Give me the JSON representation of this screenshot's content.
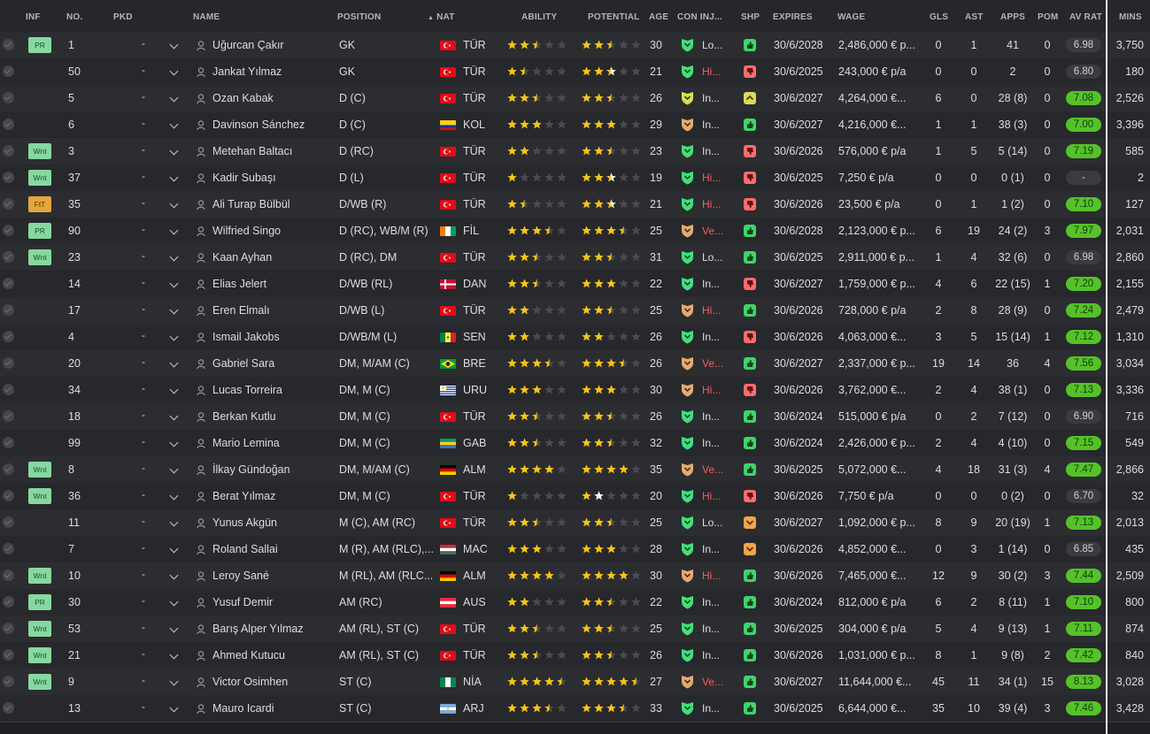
{
  "columns": {
    "inf": "INF",
    "no": "NO.",
    "pkd": "PKD",
    "name": "NAME",
    "position": "POSITION",
    "nat": "NAT",
    "ability": "ABILITY",
    "potential": "POTENTIAL",
    "age": "AGE",
    "con_inj": "CON INJ...",
    "shp": "SHP",
    "expires": "EXPIRES",
    "wage": "WAGE",
    "gls": "GLS",
    "ast": "AST",
    "apps": "APPS",
    "pom": "POM",
    "av_rat": "AV RAT",
    "mins": "MINS"
  },
  "colors": {
    "accent_green": "#55c22a",
    "injury_red": "#ff5a5a",
    "star": "#f5c518",
    "tag_green": "#86d8a0",
    "tag_orange": "#e3a73a"
  },
  "players": [
    {
      "inf": "PR",
      "no": "1",
      "pkd": "-",
      "name": "Uğurcan Çakır",
      "position": "GK",
      "nat": "TÜR",
      "flag": "tr",
      "ability": 2.5,
      "potential": 2.5,
      "age": "30",
      "con": "green",
      "inj": "Lo...",
      "inj_red": false,
      "shp": "g",
      "expires": "30/6/2028",
      "wage": "2,486,000 € p...",
      "gls": "0",
      "ast": "1",
      "apps": "41",
      "pom": "0",
      "av_rat": "6.98",
      "av_hi": false,
      "mins": "3,750"
    },
    {
      "inf": "",
      "no": "50",
      "pkd": "-",
      "name": "Jankat Yılmaz",
      "position": "GK",
      "nat": "TÜR",
      "flag": "tr",
      "ability": 1.5,
      "potential": 2.5,
      "potential_white": 1,
      "age": "21",
      "con": "green",
      "inj": "Hi...",
      "inj_red": true,
      "shp": "r",
      "expires": "30/6/2025",
      "wage": "243,000 € p/a",
      "gls": "0",
      "ast": "0",
      "apps": "2",
      "pom": "0",
      "av_rat": "6.80",
      "av_hi": false,
      "mins": "180"
    },
    {
      "inf": "",
      "no": "5",
      "pkd": "-",
      "name": "Ozan Kabak",
      "position": "D (C)",
      "nat": "TÜR",
      "flag": "tr",
      "ability": 2.5,
      "potential": 2.5,
      "age": "26",
      "con": "yellow",
      "inj": "In...",
      "inj_red": false,
      "shp": "y",
      "expires": "30/6/2027",
      "wage": "4,264,000 €...",
      "gls": "6",
      "ast": "0",
      "apps": "28 (8)",
      "pom": "0",
      "av_rat": "7.08",
      "av_hi": true,
      "mins": "2,526"
    },
    {
      "inf": "",
      "no": "6",
      "pkd": "-",
      "name": "Davinson Sánchez",
      "position": "D (C)",
      "nat": "KOL",
      "flag": "co",
      "ability": 3,
      "potential": 3,
      "age": "29",
      "con": "orange",
      "inj": "In...",
      "inj_red": false,
      "shp": "g",
      "expires": "30/6/2027",
      "wage": "4,216,000 €...",
      "gls": "1",
      "ast": "1",
      "apps": "38 (3)",
      "pom": "0",
      "av_rat": "7.00",
      "av_hi": true,
      "mins": "3,396"
    },
    {
      "inf": "Wnt",
      "no": "3",
      "pkd": "-",
      "name": "Metehan Baltacı",
      "position": "D (RC)",
      "nat": "TÜR",
      "flag": "tr",
      "ability": 2,
      "potential": 2.5,
      "age": "23",
      "con": "green",
      "inj": "In...",
      "inj_red": false,
      "shp": "r",
      "expires": "30/6/2026",
      "wage": "576,000 € p/a",
      "gls": "1",
      "ast": "5",
      "apps": "5 (14)",
      "pom": "0",
      "av_rat": "7.19",
      "av_hi": true,
      "mins": "585"
    },
    {
      "inf": "Wnt",
      "no": "37",
      "pkd": "-",
      "name": "Kadir Subaşı",
      "position": "D (L)",
      "nat": "TÜR",
      "flag": "tr",
      "ability": 1,
      "potential": 2.5,
      "potential_white": 1,
      "age": "19",
      "con": "green",
      "inj": "Hi...",
      "inj_red": true,
      "shp": "r",
      "expires": "30/6/2025",
      "wage": "7,250 € p/a",
      "gls": "0",
      "ast": "0",
      "apps": "0 (1)",
      "pom": "0",
      "av_rat": "-",
      "av_hi": false,
      "mins": "2"
    },
    {
      "inf": "FtT",
      "no": "35",
      "pkd": "-",
      "name": "Ali Turap Bülbül",
      "position": "D/WB (R)",
      "nat": "TÜR",
      "flag": "tr",
      "ability": 1.5,
      "potential": 2.5,
      "potential_white": 1,
      "age": "21",
      "con": "green",
      "inj": "Hi...",
      "inj_red": true,
      "shp": "r",
      "expires": "30/6/2026",
      "wage": "23,500 € p/a",
      "gls": "0",
      "ast": "1",
      "apps": "1 (2)",
      "pom": "0",
      "av_rat": "7.10",
      "av_hi": true,
      "mins": "127"
    },
    {
      "inf": "PR",
      "no": "90",
      "pkd": "-",
      "name": "Wilfried Singo",
      "position": "D (RC), WB/M (R)",
      "nat": "FİL",
      "flag": "ci",
      "ability": 3.5,
      "potential": 3.5,
      "age": "25",
      "con": "orange",
      "inj": "Ve...",
      "inj_red": true,
      "shp": "g",
      "expires": "30/6/2028",
      "wage": "2,123,000 € p...",
      "gls": "6",
      "ast": "19",
      "apps": "24 (2)",
      "pom": "3",
      "av_rat": "7.97",
      "av_hi": true,
      "mins": "2,031"
    },
    {
      "inf": "Wnt",
      "no": "23",
      "pkd": "-",
      "name": "Kaan Ayhan",
      "position": "D (RC), DM",
      "nat": "TÜR",
      "flag": "tr",
      "ability": 2.5,
      "potential": 2.5,
      "age": "31",
      "con": "green",
      "inj": "Lo...",
      "inj_red": false,
      "shp": "g",
      "expires": "30/6/2025",
      "wage": "2,911,000 € p...",
      "gls": "1",
      "ast": "4",
      "apps": "32 (6)",
      "pom": "0",
      "av_rat": "6.98",
      "av_hi": false,
      "mins": "2,860"
    },
    {
      "inf": "",
      "no": "14",
      "pkd": "-",
      "name": "Elias Jelert",
      "position": "D/WB (RL)",
      "nat": "DAN",
      "flag": "dk",
      "ability": 2.5,
      "potential": 3,
      "age": "22",
      "con": "green",
      "inj": "In...",
      "inj_red": false,
      "shp": "r",
      "expires": "30/6/2027",
      "wage": "1,759,000 € p...",
      "gls": "4",
      "ast": "6",
      "apps": "22 (15)",
      "pom": "1",
      "av_rat": "7.20",
      "av_hi": true,
      "mins": "2,155"
    },
    {
      "inf": "",
      "no": "17",
      "pkd": "-",
      "name": "Eren Elmalı",
      "position": "D/WB (L)",
      "nat": "TÜR",
      "flag": "tr",
      "ability": 2,
      "potential": 2.5,
      "age": "25",
      "con": "orange",
      "inj": "Hi...",
      "inj_red": true,
      "shp": "g",
      "expires": "30/6/2026",
      "wage": "728,000 € p/a",
      "gls": "2",
      "ast": "8",
      "apps": "28 (9)",
      "pom": "0",
      "av_rat": "7.24",
      "av_hi": true,
      "mins": "2,479"
    },
    {
      "inf": "",
      "no": "4",
      "pkd": "-",
      "name": "Ismail Jakobs",
      "position": "D/WB/M (L)",
      "nat": "SEN",
      "flag": "sn",
      "ability": 2,
      "potential": 2,
      "age": "26",
      "con": "green",
      "inj": "In...",
      "inj_red": false,
      "shp": "r",
      "expires": "30/6/2026",
      "wage": "4,063,000 €...",
      "gls": "3",
      "ast": "5",
      "apps": "15 (14)",
      "pom": "1",
      "av_rat": "7.12",
      "av_hi": true,
      "mins": "1,310"
    },
    {
      "inf": "",
      "no": "20",
      "pkd": "-",
      "name": "Gabriel Sara",
      "position": "DM, M/AM (C)",
      "nat": "BRE",
      "flag": "br",
      "ability": 3.5,
      "potential": 3.5,
      "age": "26",
      "con": "orange",
      "inj": "Ve...",
      "inj_red": true,
      "shp": "g",
      "expires": "30/6/2027",
      "wage": "2,337,000 € p...",
      "gls": "19",
      "ast": "14",
      "apps": "36",
      "pom": "4",
      "av_rat": "7.56",
      "av_hi": true,
      "mins": "3,034"
    },
    {
      "inf": "",
      "no": "34",
      "pkd": "-",
      "name": "Lucas Torreira",
      "position": "DM, M (C)",
      "nat": "URU",
      "flag": "uy",
      "ability": 3,
      "potential": 3,
      "age": "30",
      "con": "orange",
      "inj": "Hi...",
      "inj_red": true,
      "shp": "r",
      "expires": "30/6/2026",
      "wage": "3,762,000 €...",
      "gls": "2",
      "ast": "4",
      "apps": "38 (1)",
      "pom": "0",
      "av_rat": "7.13",
      "av_hi": true,
      "mins": "3,336"
    },
    {
      "inf": "",
      "no": "18",
      "pkd": "-",
      "name": "Berkan Kutlu",
      "position": "DM, M (C)",
      "nat": "TÜR",
      "flag": "tr",
      "ability": 2.5,
      "potential": 2.5,
      "age": "26",
      "con": "green",
      "inj": "In...",
      "inj_red": false,
      "shp": "g",
      "expires": "30/6/2024",
      "wage": "515,000 € p/a",
      "gls": "0",
      "ast": "2",
      "apps": "7 (12)",
      "pom": "0",
      "av_rat": "6.90",
      "av_hi": false,
      "mins": "716"
    },
    {
      "inf": "",
      "no": "99",
      "pkd": "-",
      "name": "Mario Lemina",
      "position": "DM, M (C)",
      "nat": "GAB",
      "flag": "ga",
      "ability": 2.5,
      "potential": 2.5,
      "age": "32",
      "con": "green",
      "inj": "In...",
      "inj_red": false,
      "shp": "g",
      "expires": "30/6/2024",
      "wage": "2,426,000 € p...",
      "gls": "2",
      "ast": "4",
      "apps": "4 (10)",
      "pom": "0",
      "av_rat": "7.15",
      "av_hi": true,
      "mins": "549"
    },
    {
      "inf": "Wnt",
      "no": "8",
      "pkd": "-",
      "name": "İlkay Gündoğan",
      "position": "DM, M/AM (C)",
      "nat": "ALM",
      "flag": "de",
      "ability": 4,
      "potential": 4,
      "age": "35",
      "con": "orange",
      "inj": "Ve...",
      "inj_red": true,
      "shp": "g",
      "expires": "30/6/2025",
      "wage": "5,072,000 €...",
      "gls": "4",
      "ast": "18",
      "apps": "31 (3)",
      "pom": "4",
      "av_rat": "7.47",
      "av_hi": true,
      "mins": "2,866"
    },
    {
      "inf": "Wnt",
      "no": "36",
      "pkd": "-",
      "name": "Berat Yılmaz",
      "position": "DM, M (C)",
      "nat": "TÜR",
      "flag": "tr",
      "ability": 1,
      "potential": 1,
      "potential_white": 1,
      "age": "20",
      "con": "green",
      "inj": "Hi...",
      "inj_red": true,
      "shp": "r",
      "expires": "30/6/2026",
      "wage": "7,750 € p/a",
      "gls": "0",
      "ast": "0",
      "apps": "0 (2)",
      "pom": "0",
      "av_rat": "6.70",
      "av_hi": false,
      "mins": "32"
    },
    {
      "inf": "",
      "no": "11",
      "pkd": "-",
      "name": "Yunus Akgün",
      "position": "M (C), AM (RC)",
      "nat": "TÜR",
      "flag": "tr",
      "ability": 2.5,
      "potential": 2.5,
      "age": "25",
      "con": "green",
      "inj": "Lo...",
      "inj_red": false,
      "shp": "o",
      "expires": "30/6/2027",
      "wage": "1,092,000 € p...",
      "gls": "8",
      "ast": "9",
      "apps": "20 (19)",
      "pom": "1",
      "av_rat": "7.13",
      "av_hi": true,
      "mins": "2,013"
    },
    {
      "inf": "",
      "no": "7",
      "pkd": "-",
      "name": "Roland Sallai",
      "position": "M (R), AM (RLC),...",
      "nat": "MAC",
      "flag": "hu",
      "ability": 3,
      "potential": 3,
      "age": "28",
      "con": "green",
      "inj": "In...",
      "inj_red": false,
      "shp": "o",
      "expires": "30/6/2026",
      "wage": "4,852,000 €...",
      "gls": "0",
      "ast": "3",
      "apps": "1 (14)",
      "pom": "0",
      "av_rat": "6.85",
      "av_hi": false,
      "mins": "435"
    },
    {
      "inf": "Wnt",
      "no": "10",
      "pkd": "-",
      "name": "Leroy Sané",
      "position": "M (RL), AM (RLC...",
      "nat": "ALM",
      "flag": "de",
      "ability": 4,
      "potential": 4,
      "age": "30",
      "con": "orange",
      "inj": "Hi...",
      "inj_red": true,
      "shp": "g",
      "expires": "30/6/2026",
      "wage": "7,465,000 €...",
      "gls": "12",
      "ast": "9",
      "apps": "30 (2)",
      "pom": "3",
      "av_rat": "7.44",
      "av_hi": true,
      "mins": "2,509"
    },
    {
      "inf": "PR",
      "no": "30",
      "pkd": "-",
      "name": "Yusuf Demir",
      "position": "AM (RC)",
      "nat": "AUS",
      "flag": "at",
      "ability": 2,
      "potential": 2.5,
      "age": "22",
      "con": "green",
      "inj": "In...",
      "inj_red": false,
      "shp": "g",
      "expires": "30/6/2024",
      "wage": "812,000 € p/a",
      "gls": "6",
      "ast": "2",
      "apps": "8 (11)",
      "pom": "1",
      "av_rat": "7.10",
      "av_hi": true,
      "mins": "800"
    },
    {
      "inf": "Wnt",
      "no": "53",
      "pkd": "-",
      "name": "Barış Alper Yılmaz",
      "position": "AM (RL), ST (C)",
      "nat": "TÜR",
      "flag": "tr",
      "ability": 2.5,
      "potential": 2.5,
      "age": "25",
      "con": "green",
      "inj": "In...",
      "inj_red": false,
      "shp": "g",
      "expires": "30/6/2025",
      "wage": "304,000 € p/a",
      "gls": "5",
      "ast": "4",
      "apps": "9 (13)",
      "pom": "1",
      "av_rat": "7.11",
      "av_hi": true,
      "mins": "874"
    },
    {
      "inf": "Wnt",
      "no": "21",
      "pkd": "-",
      "name": "Ahmed Kutucu",
      "position": "AM (RL), ST (C)",
      "nat": "TÜR",
      "flag": "tr",
      "ability": 2.5,
      "potential": 2.5,
      "age": "26",
      "con": "green",
      "inj": "In...",
      "inj_red": false,
      "shp": "g",
      "expires": "30/6/2026",
      "wage": "1,031,000 € p...",
      "gls": "8",
      "ast": "1",
      "apps": "9 (8)",
      "pom": "2",
      "av_rat": "7.42",
      "av_hi": true,
      "mins": "840"
    },
    {
      "inf": "Wnt",
      "no": "9",
      "pkd": "-",
      "name": "Victor Osimhen",
      "position": "ST (C)",
      "nat": "NİA",
      "flag": "ng",
      "ability": 4.5,
      "potential": 4.5,
      "age": "27",
      "con": "orange",
      "inj": "Ve...",
      "inj_red": true,
      "shp": "g",
      "expires": "30/6/2027",
      "wage": "11,644,000 €...",
      "gls": "45",
      "ast": "11",
      "apps": "34 (1)",
      "pom": "15",
      "av_rat": "8.13",
      "av_hi": true,
      "mins": "3,028"
    },
    {
      "inf": "",
      "no": "13",
      "pkd": "-",
      "name": "Mauro Icardi",
      "position": "ST (C)",
      "nat": "ARJ",
      "flag": "ar",
      "ability": 3.5,
      "potential": 3.5,
      "age": "33",
      "con": "green",
      "inj": "In...",
      "inj_red": false,
      "shp": "g",
      "expires": "30/6/2025",
      "wage": "6,644,000 €...",
      "gls": "35",
      "ast": "10",
      "apps": "39 (4)",
      "pom": "3",
      "av_rat": "7.46",
      "av_hi": true,
      "mins": "3,428"
    }
  ]
}
